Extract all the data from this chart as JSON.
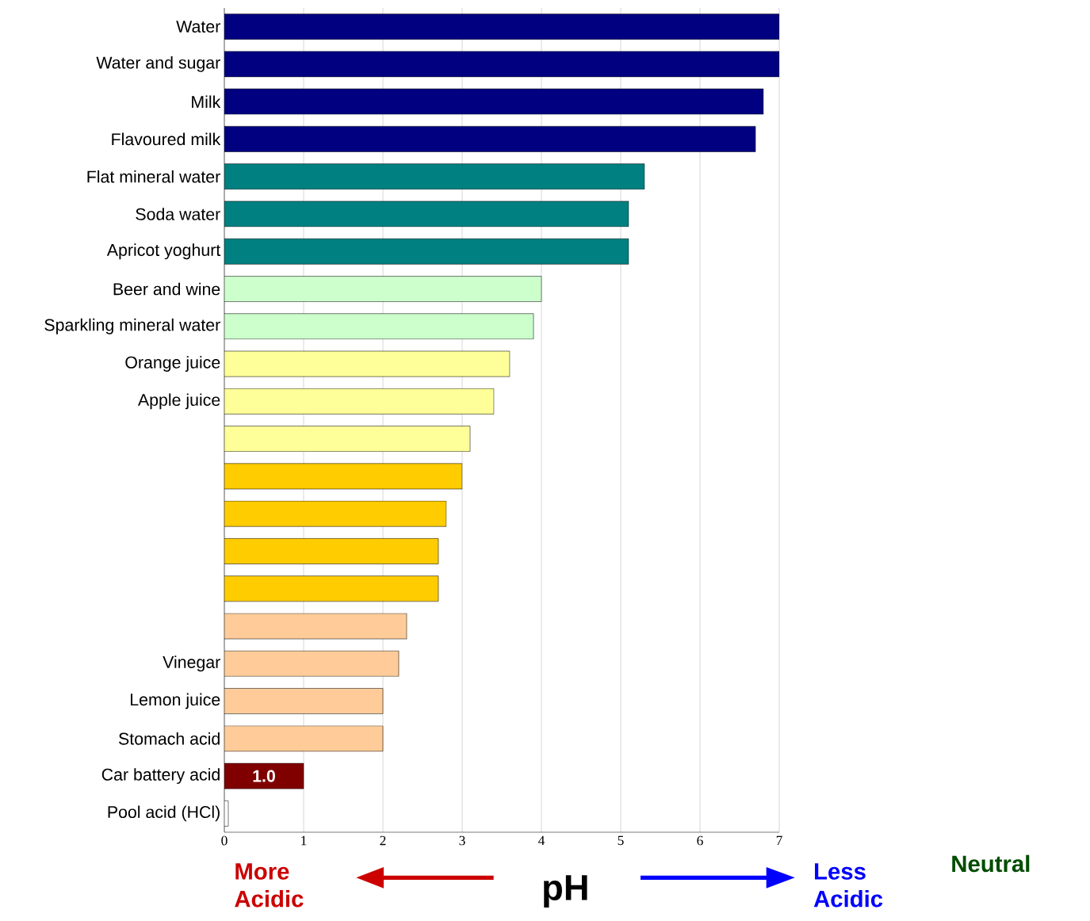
{
  "chart_data": {
    "type": "bar",
    "orientation": "horizontal",
    "xlabel": "pH",
    "categories": [
      "Water",
      "Water and sugar",
      "Milk",
      "Flavoured milk",
      "Flat mineral water",
      "Soda water",
      "Apricot yoghurt",
      "Beer and wine",
      "Sparkling mineral water",
      "Orange juice",
      "Apple juice",
      null,
      null,
      null,
      null,
      null,
      null,
      "Vinegar",
      "Lemon juice",
      "Stomach acid",
      "Car battery acid",
      "Pool acid (HCl)"
    ],
    "values": [
      7.0,
      7.0,
      6.8,
      6.7,
      5.3,
      5.1,
      5.1,
      4.0,
      3.9,
      3.6,
      3.4,
      3.1,
      3.0,
      2.8,
      2.7,
      2.7,
      2.3,
      2.2,
      2.0,
      2.0,
      1.0,
      0.05
    ],
    "colors": [
      "#000080",
      "#000080",
      "#000080",
      "#000080",
      "#008080",
      "#008080",
      "#008080",
      "#ccffcc",
      "#ccffcc",
      "#ffff99",
      "#ffff99",
      "#ffff99",
      "#ffcc00",
      "#ffcc00",
      "#ffcc00",
      "#ffcc00",
      "#ffcc99",
      "#ffcc99",
      "#ffcc99",
      "#ffcc99",
      "#800000",
      "#ffffff"
    ],
    "value_labels": [
      null,
      null,
      null,
      null,
      null,
      null,
      null,
      null,
      null,
      null,
      null,
      null,
      null,
      null,
      null,
      null,
      null,
      null,
      null,
      null,
      "1.0",
      null
    ],
    "xlim": [
      0,
      7
    ],
    "xticks": [
      0,
      1,
      2,
      3,
      4,
      5,
      6,
      7
    ],
    "grid": "x",
    "annotations": [
      "More Acidic",
      "Less Acidic",
      "Neutral"
    ]
  }
}
